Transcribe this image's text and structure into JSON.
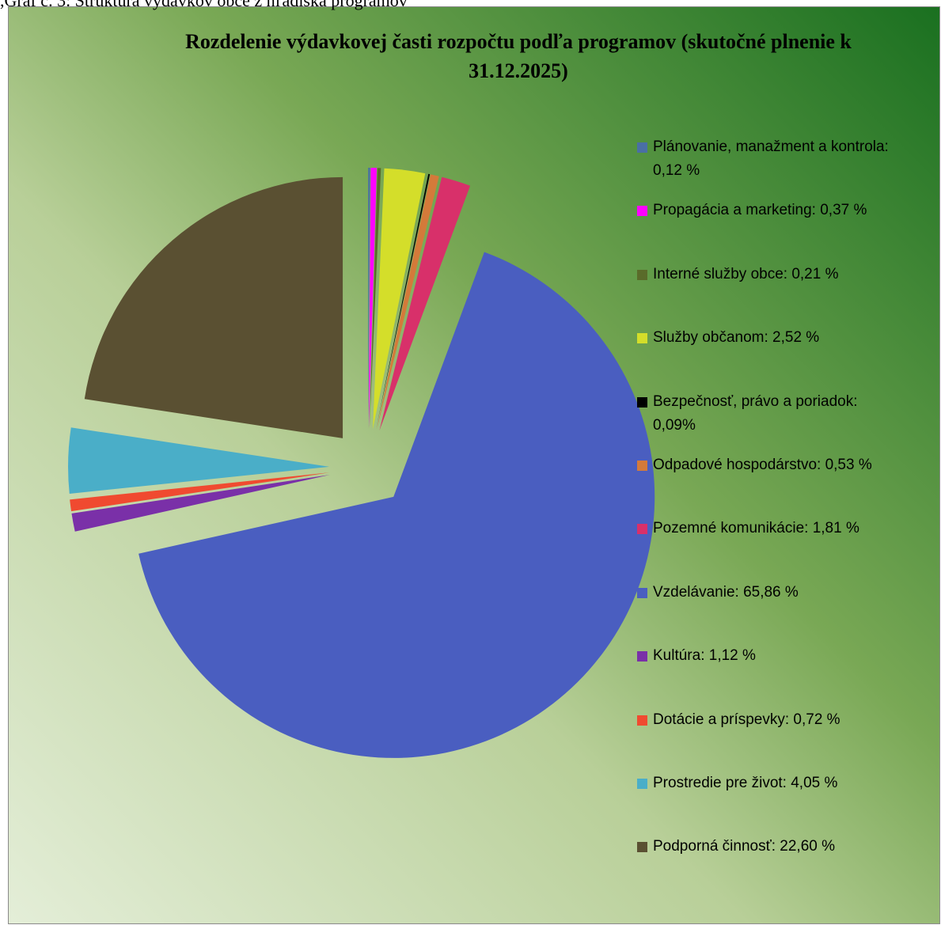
{
  "caption": ",Graf č. 3: Štruktúra výdavkov obce z hľadiska programov",
  "chart_data": {
    "type": "pie",
    "title": "Rozdelenie výdavkovej časti rozpočtu podľa programov (skutočné plnenie k 31.12.2025)",
    "categories": [
      "Plánovanie, manažment a kontrola: 0,12 %",
      "Propagácia a marketing: 0,37 %",
      "Interné služby obce: 0,21 %",
      "Služby občanom: 2,52 %",
      "Bezpečnosť, právo a poriadok: 0,09%",
      "Odpadové hospodárstvo: 0,53 %",
      "Pozemné komunikácie: 1,81 %",
      "Vzdelávanie: 65,86 %",
      "Kultúra: 1,12 %",
      "Dotácie a príspevky: 0,72 %",
      "Prostredie pre život: 4,05 %",
      "Podporná činnosť: 22,60 %"
    ],
    "values": [
      0.12,
      0.37,
      0.21,
      2.52,
      0.09,
      0.53,
      1.81,
      65.86,
      1.12,
      0.72,
      4.05,
      22.6
    ],
    "colors": [
      "#4a6fa5",
      "#ff00ff",
      "#5a6b2a",
      "#d4de2a",
      "#000000",
      "#d47a3a",
      "#d8306a",
      "#4a5ec0",
      "#7a30a8",
      "#f04a30",
      "#4aaec8",
      "#5a5032"
    ],
    "exploded": true,
    "legend": "right"
  }
}
